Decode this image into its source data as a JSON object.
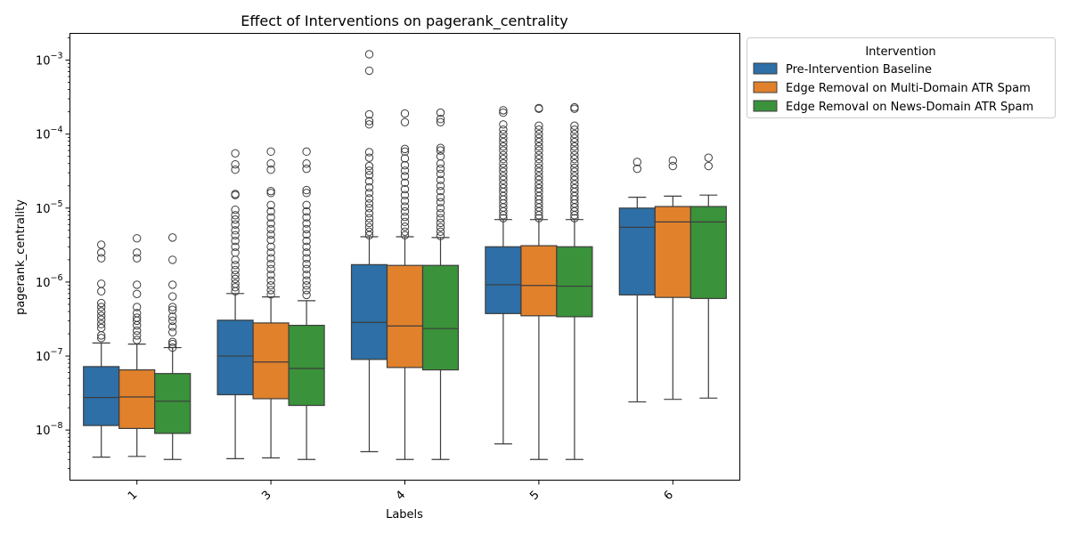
{
  "chart_data": {
    "type": "box",
    "title": "Effect of Interventions on pagerank_centrality",
    "xlabel": "Labels",
    "ylabel": "pagerank_centrality",
    "y_scale": "log",
    "ylim": [
      2.1e-09,
      0.0023
    ],
    "y_ticks": [
      {
        "value": 1e-08,
        "base": "10",
        "exp": "−8"
      },
      {
        "value": 1e-07,
        "base": "10",
        "exp": "−7"
      },
      {
        "value": 1e-06,
        "base": "10",
        "exp": "−6"
      },
      {
        "value": 1e-05,
        "base": "10",
        "exp": "−5"
      },
      {
        "value": 0.0001,
        "base": "10",
        "exp": "−4"
      },
      {
        "value": 0.001,
        "base": "10",
        "exp": "−3"
      }
    ],
    "categories": [
      "1",
      "3",
      "4",
      "5",
      "6"
    ],
    "grid": false,
    "legend": {
      "title": "Intervention",
      "placement": "outside upper-right"
    },
    "series": [
      {
        "name": "Pre-Intervention Baseline",
        "color": "#2d6fa6",
        "boxes": [
          {
            "whislo": 4.3e-09,
            "q1": 1.15e-08,
            "med": 2.75e-08,
            "q3": 7.2e-08,
            "whishi": 1.5e-07,
            "fliers": [
              3.2e-06,
              2.5e-06,
              2.1e-06,
              9.5e-07,
              7.5e-07,
              5.2e-07,
              4.6e-07,
              4e-07,
              3.5e-07,
              3.1e-07,
              2.7e-07,
              2.4e-07,
              1.9e-07,
              1.75e-07
            ]
          },
          {
            "whislo": 4.1e-09,
            "q1": 3e-08,
            "med": 1e-07,
            "q3": 3.05e-07,
            "whishi": 7e-07,
            "fliers": [
              5.5e-05,
              3.9e-05,
              3.3e-05,
              1.55e-05,
              1.5e-05,
              9.5e-06,
              8e-06,
              7e-06,
              6e-06,
              5e-06,
              4.3e-06,
              3.6e-06,
              3e-06,
              2.5e-06,
              2e-06,
              1.7e-06,
              1.45e-06,
              1.25e-06,
              1.1e-06,
              9.5e-07,
              8.5e-07,
              7.5e-07
            ]
          },
          {
            "whislo": 5.1e-09,
            "q1": 9e-08,
            "med": 2.85e-07,
            "q3": 1.72e-06,
            "whishi": 4.1e-06,
            "fliers": [
              0.0012,
              0.00072,
              0.000185,
              0.00015,
              0.000135,
              5.7e-05,
              4.8e-05,
              3.7e-05,
              3.2e-05,
              2.8e-05,
              2.3e-05,
              1.9e-05,
              1.6e-05,
              1.35e-05,
              1.15e-05,
              1e-05,
              8.5e-06,
              7.3e-06,
              6.3e-06,
              5.5e-06,
              4.8e-06,
              4.3e-06
            ]
          },
          {
            "whislo": 6.5e-09,
            "q1": 3.75e-07,
            "med": 9.2e-07,
            "q3": 3e-06,
            "whishi": 7e-06,
            "fliers": [
              0.00021,
              0.000195,
              0.000135,
              0.000115,
              0.0001,
              8.8e-05,
              7.8e-05,
              6.8e-05,
              6e-05,
              5.2e-05,
              4.6e-05,
              4e-05,
              3.5e-05,
              3.1e-05,
              2.7e-05,
              2.4e-05,
              2.1e-05,
              1.85e-05,
              1.65e-05,
              1.45e-05,
              1.3e-05,
              1.15e-05,
              1.02e-05,
              9e-06,
              8e-06,
              7.3e-06
            ]
          },
          {
            "whislo": 2.4e-08,
            "q1": 6.7e-07,
            "med": 5.5e-06,
            "q3": 1e-05,
            "whishi": 1.4e-05,
            "fliers": [
              4.2e-05,
              3.4e-05
            ]
          }
        ]
      },
      {
        "name": "Edge Removal on Multi-Domain ATR Spam",
        "color": "#e1812c",
        "boxes": [
          {
            "whislo": 4.4e-09,
            "q1": 1.05e-08,
            "med": 2.8e-08,
            "q3": 6.5e-08,
            "whishi": 1.45e-07,
            "fliers": [
              3.9e-06,
              2.5e-06,
              2.1e-06,
              9.2e-07,
              6.9e-07,
              4.6e-07,
              3.8e-07,
              3.3e-07,
              3e-07,
              2.6e-07,
              2.2e-07,
              1.9e-07,
              1.65e-07
            ]
          },
          {
            "whislo": 4.2e-09,
            "q1": 2.65e-08,
            "med": 8.3e-08,
            "q3": 2.8e-07,
            "whishi": 6.3e-07,
            "fliers": [
              5.8e-05,
              4e-05,
              3.3e-05,
              1.7e-05,
              1.6e-05,
              1.1e-05,
              9e-06,
              7.5e-06,
              6.2e-06,
              5.2e-06,
              4.4e-06,
              3.7e-06,
              3e-06,
              2.5e-06,
              2.1e-06,
              1.75e-06,
              1.5e-06,
              1.25e-06,
              1.05e-06,
              9e-07,
              7.8e-07,
              6.8e-07
            ]
          },
          {
            "whislo": 4e-09,
            "q1": 7e-08,
            "med": 2.55e-07,
            "q3": 1.68e-06,
            "whishi": 4.1e-06,
            "fliers": [
              0.00019,
              0.000145,
              6.3e-05,
              5.8e-05,
              4.7e-05,
              3.8e-05,
              3.2e-05,
              2.7e-05,
              2.2e-05,
              1.8e-05,
              1.5e-05,
              1.25e-05,
              1.05e-05,
              9e-06,
              7.6e-06,
              6.5e-06,
              5.6e-06,
              4.8e-06,
              4.3e-06
            ]
          },
          {
            "whislo": 4e-09,
            "q1": 3.5e-07,
            "med": 9e-07,
            "q3": 3.1e-06,
            "whishi": 7e-06,
            "fliers": [
              0.000225,
              0.00022,
              0.00013,
              0.000115,
              0.0001,
              8.8e-05,
              7.8e-05,
              6.8e-05,
              6e-05,
              5.2e-05,
              4.6e-05,
              4e-05,
              3.5e-05,
              3.1e-05,
              2.7e-05,
              2.4e-05,
              2.1e-05,
              1.85e-05,
              1.65e-05,
              1.45e-05,
              1.3e-05,
              1.15e-05,
              1.02e-05,
              9e-06,
              8e-06,
              7.3e-06
            ]
          },
          {
            "whislo": 2.6e-08,
            "q1": 6.2e-07,
            "med": 6.5e-06,
            "q3": 1.05e-05,
            "whishi": 1.45e-05,
            "fliers": [
              4.4e-05,
              3.7e-05
            ]
          }
        ]
      },
      {
        "name": "Edge Removal on News-Domain ATR Spam",
        "color": "#3a923a",
        "boxes": [
          {
            "whislo": 4e-09,
            "q1": 9e-09,
            "med": 2.45e-08,
            "q3": 5.8e-08,
            "whishi": 1.3e-07,
            "fliers": [
              4e-06,
              2e-06,
              9.2e-07,
              6.4e-07,
              4.6e-07,
              4.2e-07,
              3.4e-07,
              3e-07,
              2.5e-07,
              2.1e-07,
              1.55e-07,
              1.45e-07,
              1.3e-07
            ]
          },
          {
            "whislo": 4e-09,
            "q1": 2.15e-08,
            "med": 6.8e-08,
            "q3": 2.6e-07,
            "whishi": 5.6e-07,
            "fliers": [
              5.8e-05,
              4e-05,
              3.4e-05,
              1.75e-05,
              1.6e-05,
              1.1e-05,
              9e-06,
              7.5e-06,
              6.2e-06,
              5.2e-06,
              4.4e-06,
              3.6e-06,
              3e-06,
              2.5e-06,
              2.1e-06,
              1.75e-06,
              1.5e-06,
              1.25e-06,
              1.05e-06,
              9e-07,
              7.8e-07,
              6.7e-07
            ]
          },
          {
            "whislo": 4e-09,
            "q1": 6.5e-08,
            "med": 2.35e-07,
            "q3": 1.68e-06,
            "whishi": 4e-06,
            "fliers": [
              0.000195,
              0.00016,
              0.000145,
              6.5e-05,
              6e-05,
              5e-05,
              4e-05,
              3.4e-05,
              2.9e-05,
              2.4e-05,
              2e-05,
              1.7e-05,
              1.4e-05,
              1.2e-05,
              1e-05,
              8.5e-06,
              7.3e-06,
              6.3e-06,
              5.5e-06,
              4.8e-06,
              4.2e-06
            ]
          },
          {
            "whislo": 4e-09,
            "q1": 3.4e-07,
            "med": 8.8e-07,
            "q3": 3e-06,
            "whishi": 7e-06,
            "fliers": [
              0.00023,
              0.00022,
              0.00013,
              0.000115,
              0.0001,
              8.8e-05,
              7.8e-05,
              6.8e-05,
              6e-05,
              5.2e-05,
              4.6e-05,
              4e-05,
              3.5e-05,
              3.1e-05,
              2.7e-05,
              2.4e-05,
              2.1e-05,
              1.85e-05,
              1.65e-05,
              1.45e-05,
              1.3e-05,
              1.15e-05,
              1.02e-05,
              9e-06,
              8e-06,
              7.3e-06
            ]
          },
          {
            "whislo": 2.7e-08,
            "q1": 6e-07,
            "med": 6.5e-06,
            "q3": 1.05e-05,
            "whishi": 1.5e-05,
            "fliers": [
              4.8e-05,
              3.7e-05
            ]
          }
        ]
      }
    ]
  }
}
